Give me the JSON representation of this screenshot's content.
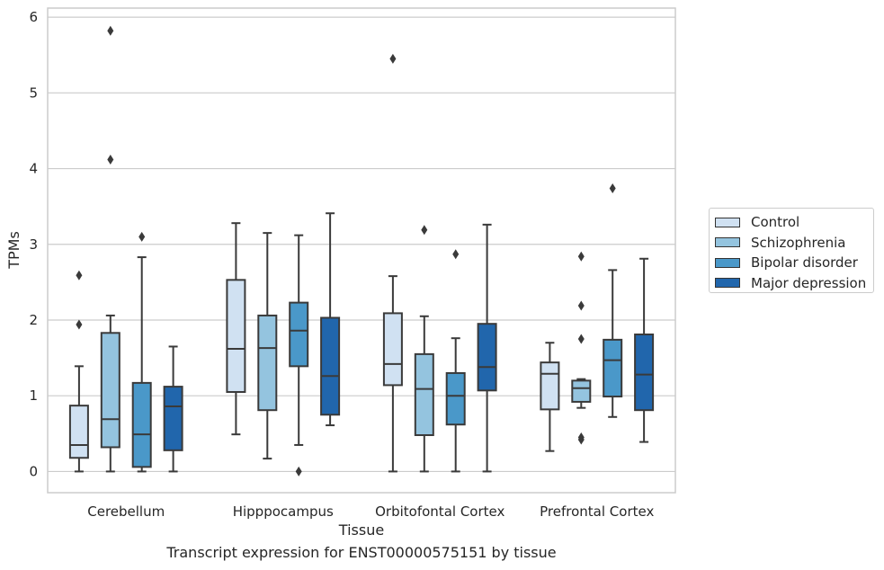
{
  "caption": "Transcript expression for ENST00000575151 by tissue",
  "chart_data": {
    "type": "boxplot",
    "xlabel": "Tissue",
    "ylabel": "TPMs",
    "ylim": [
      -0.28,
      6.12
    ],
    "yticks": [
      0,
      1,
      2,
      3,
      4,
      5,
      6
    ],
    "grid": "horizontal",
    "legend_position": "right",
    "categories": [
      "Cerebellum",
      "Hipppocampus",
      "Orbitofontal Cortex",
      "Prefrontal Cortex"
    ],
    "series": [
      {
        "name": "Control",
        "color": "#d0e1f2",
        "boxes": [
          {
            "whisker_low": 0.0,
            "q1": 0.18,
            "median": 0.35,
            "q3": 0.87,
            "whisker_high": 1.39,
            "outliers": [
              1.94,
              2.59
            ]
          },
          {
            "whisker_low": 0.49,
            "q1": 1.05,
            "median": 1.62,
            "q3": 2.53,
            "whisker_high": 3.28,
            "outliers": []
          },
          {
            "whisker_low": 0.0,
            "q1": 1.14,
            "median": 1.42,
            "q3": 2.09,
            "whisker_high": 2.58,
            "outliers": [
              5.45
            ]
          },
          {
            "whisker_low": 0.27,
            "q1": 0.82,
            "median": 1.29,
            "q3": 1.44,
            "whisker_high": 1.7,
            "outliers": []
          }
        ]
      },
      {
        "name": "Schizophrenia",
        "color": "#94c4df",
        "boxes": [
          {
            "whisker_low": 0.0,
            "q1": 0.32,
            "median": 0.69,
            "q3": 1.83,
            "whisker_high": 2.06,
            "outliers": [
              4.12,
              5.82
            ]
          },
          {
            "whisker_low": 0.17,
            "q1": 0.81,
            "median": 1.63,
            "q3": 2.06,
            "whisker_high": 3.15,
            "outliers": []
          },
          {
            "whisker_low": 0.0,
            "q1": 0.48,
            "median": 1.09,
            "q3": 1.55,
            "whisker_high": 2.05,
            "outliers": [
              3.19
            ]
          },
          {
            "whisker_low": 0.84,
            "q1": 0.92,
            "median": 1.1,
            "q3": 1.2,
            "whisker_high": 1.22,
            "outliers": [
              0.42,
              0.45,
              1.75,
              2.19,
              2.84
            ]
          }
        ]
      },
      {
        "name": "Bipolar disorder",
        "color": "#4a98c9",
        "boxes": [
          {
            "whisker_low": 0.0,
            "q1": 0.06,
            "median": 0.49,
            "q3": 1.17,
            "whisker_high": 2.83,
            "outliers": [
              3.1
            ]
          },
          {
            "whisker_low": 0.35,
            "q1": 1.39,
            "median": 1.86,
            "q3": 2.23,
            "whisker_high": 3.12,
            "outliers": [
              0.0
            ]
          },
          {
            "whisker_low": 0.0,
            "q1": 0.62,
            "median": 1.0,
            "q3": 1.3,
            "whisker_high": 1.76,
            "outliers": [
              2.87
            ]
          },
          {
            "whisker_low": 0.72,
            "q1": 0.99,
            "median": 1.47,
            "q3": 1.74,
            "whisker_high": 2.66,
            "outliers": [
              3.74
            ]
          }
        ]
      },
      {
        "name": "Major depression",
        "color": "#2166ac",
        "boxes": [
          {
            "whisker_low": 0.0,
            "q1": 0.28,
            "median": 0.86,
            "q3": 1.12,
            "whisker_high": 1.65,
            "outliers": []
          },
          {
            "whisker_low": 0.61,
            "q1": 0.75,
            "median": 1.26,
            "q3": 2.03,
            "whisker_high": 3.41,
            "outliers": []
          },
          {
            "whisker_low": 0.0,
            "q1": 1.07,
            "median": 1.38,
            "q3": 1.95,
            "whisker_high": 3.26,
            "outliers": []
          },
          {
            "whisker_low": 0.39,
            "q1": 0.81,
            "median": 1.28,
            "q3": 1.81,
            "whisker_high": 2.81,
            "outliers": []
          }
        ]
      }
    ]
  }
}
